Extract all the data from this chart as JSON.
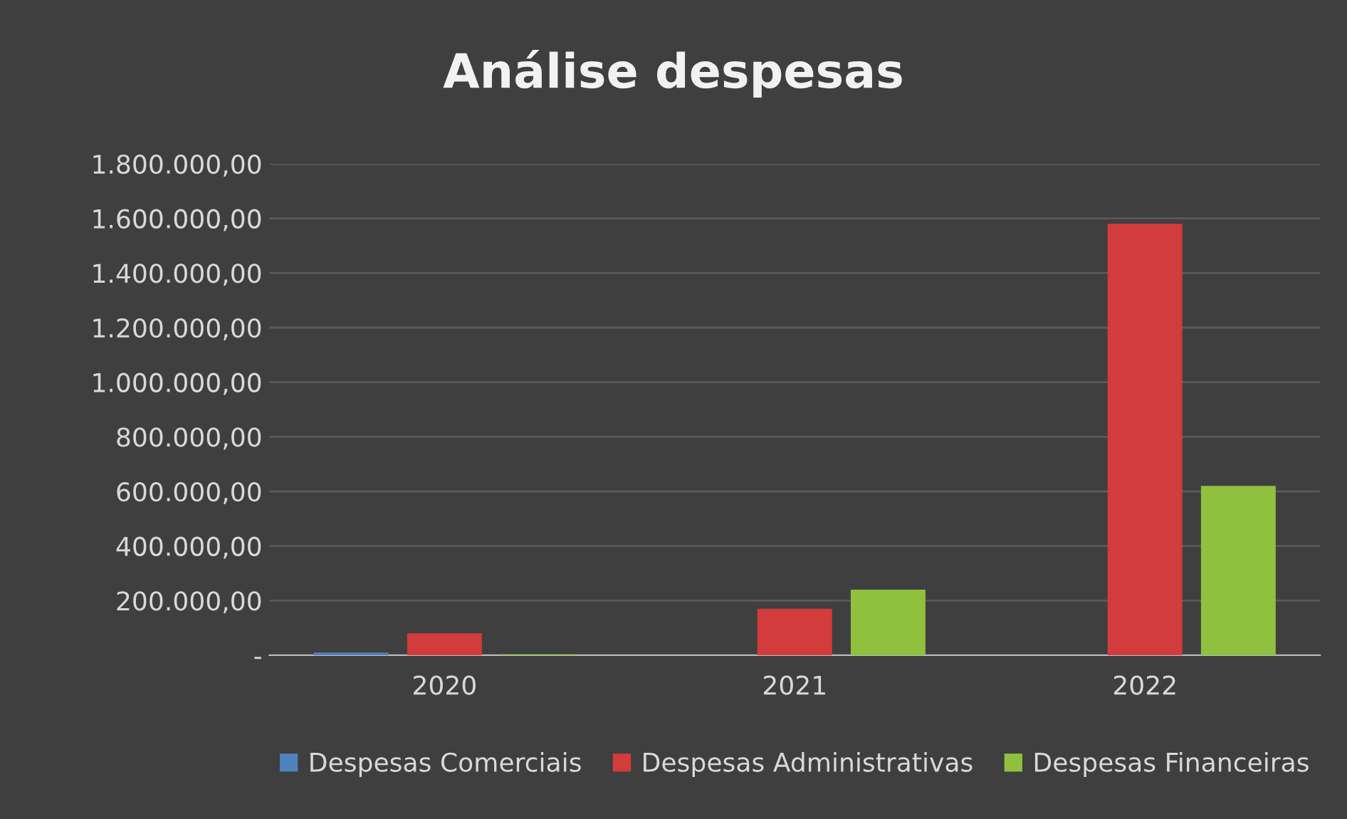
{
  "chart_data": {
    "type": "bar",
    "title": "Análise despesas",
    "categories": [
      "2020",
      "2021",
      "2022"
    ],
    "series": [
      {
        "name": "Despesas Comerciais",
        "color": "#4f81bd",
        "values": [
          10000,
          0,
          0
        ]
      },
      {
        "name": "Despesas Administrativas",
        "color": "#d23c3c",
        "values": [
          80000,
          170000,
          1580000
        ]
      },
      {
        "name": "Despesas Financeiras",
        "color": "#8fc13e",
        "values": [
          3000,
          240000,
          620000
        ]
      }
    ],
    "ylim": [
      0,
      1800000
    ],
    "yticks": [
      {
        "value": 0,
        "label": "-"
      },
      {
        "value": 200000,
        "label": "200.000,00"
      },
      {
        "value": 400000,
        "label": "400.000,00"
      },
      {
        "value": 600000,
        "label": "600.000,00"
      },
      {
        "value": 800000,
        "label": "800.000,00"
      },
      {
        "value": 1000000,
        "label": "1.000.000,00"
      },
      {
        "value": 1200000,
        "label": "1.200.000,00"
      },
      {
        "value": 1400000,
        "label": "1.400.000,00"
      },
      {
        "value": 1600000,
        "label": "1.600.000,00"
      },
      {
        "value": 1800000,
        "label": "1.800.000,00"
      }
    ],
    "grid": "y",
    "legend": "bottom"
  }
}
